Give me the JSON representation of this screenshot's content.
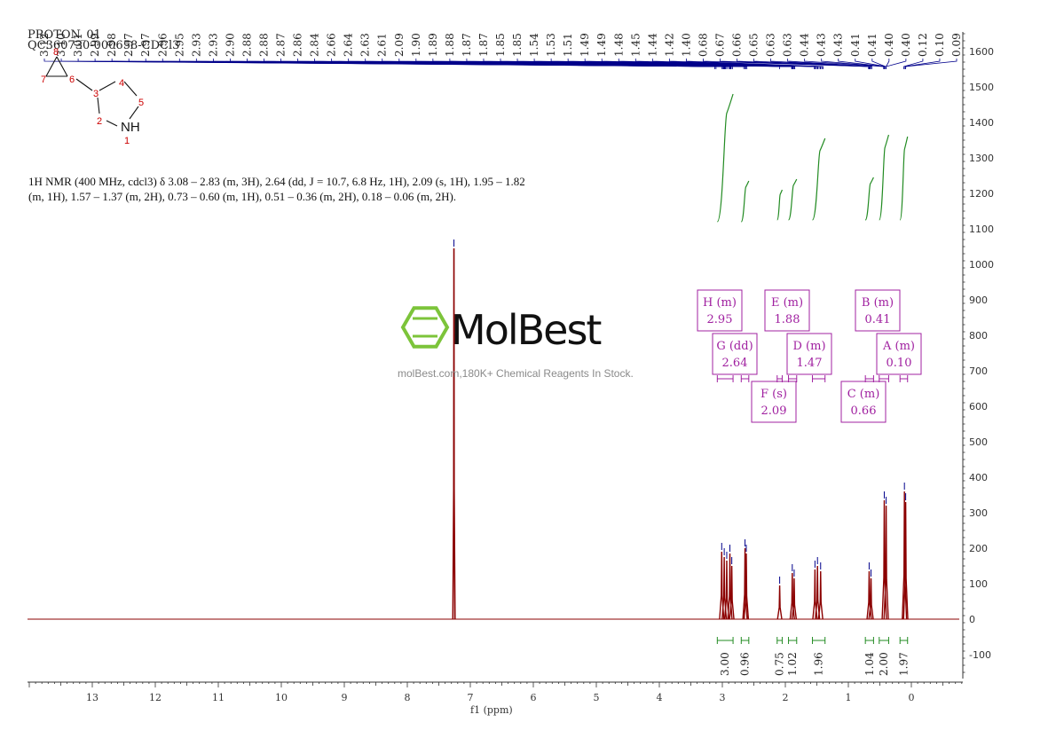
{
  "header": {
    "line1": "PROTON_01",
    "line2": "QC360730-000658-CDCl3"
  },
  "description": "1H NMR (400 MHz, cdcl3) δ 3.08 – 2.83 (m, 3H), 2.64 (dd, J = 10.7, 6.8 Hz, 1H), 2.09 (s, 1H), 1.95 – 1.82 (m, 1H), 1.57 – 1.37 (m, 2H), 0.73 – 0.60 (m, 1H), 0.51 – 0.36 (m, 2H), 0.18 – 0.06 (m, 2H).",
  "watermark": {
    "brand": "MolBest",
    "tagline": "molBest.com,180K+ Chemical Reagents In Stock."
  },
  "molecule": {
    "atom_labels": [
      "1",
      "2",
      "3",
      "4",
      "5",
      "6",
      "7",
      "8"
    ],
    "nh_label": "NH"
  },
  "colors": {
    "spectrum": "#8b0000",
    "peak_labels": "#00008b",
    "integrals": "#228b22",
    "multiplet_boxes": "#a020a0",
    "logo": "#7cc43a"
  },
  "chart_data": {
    "type": "line",
    "title": "",
    "xlabel": "f1 (ppm)",
    "ylabel": "",
    "xlim": [
      14,
      -1
    ],
    "ylim": [
      -150,
      1650
    ],
    "x_ticks": [
      13,
      12,
      11,
      10,
      9,
      8,
      7,
      6,
      5,
      4,
      3,
      2,
      1,
      0
    ],
    "y_ticks": [
      1600,
      1500,
      1400,
      1300,
      1200,
      1100,
      1000,
      900,
      800,
      700,
      600,
      500,
      400,
      300,
      200,
      100,
      0,
      -100
    ],
    "peak_labels": [
      "3.12",
      "3.10",
      "3.01",
      "2.99",
      "2.98",
      "2.97",
      "2.97",
      "2.96",
      "2.95",
      "2.93",
      "2.93",
      "2.90",
      "2.88",
      "2.88",
      "2.87",
      "2.86",
      "2.84",
      "2.66",
      "2.64",
      "2.63",
      "2.61",
      "2.09",
      "1.90",
      "1.89",
      "1.88",
      "1.87",
      "1.87",
      "1.85",
      "1.85",
      "1.54",
      "1.53",
      "1.51",
      "1.49",
      "1.49",
      "1.48",
      "1.45",
      "1.44",
      "1.42",
      "1.40",
      "0.68",
      "0.67",
      "0.66",
      "0.65",
      "0.63",
      "0.63",
      "0.44",
      "0.43",
      "0.43",
      "0.41",
      "0.41",
      "0.40",
      "0.40",
      "0.12",
      "0.10",
      "0.09"
    ],
    "peaks": [
      {
        "x": 7.26,
        "y": 1045
      },
      {
        "x": 3.01,
        "y": 190
      },
      {
        "x": 2.97,
        "y": 175
      },
      {
        "x": 2.93,
        "y": 165
      },
      {
        "x": 2.88,
        "y": 185
      },
      {
        "x": 2.85,
        "y": 150
      },
      {
        "x": 2.64,
        "y": 200
      },
      {
        "x": 2.62,
        "y": 185
      },
      {
        "x": 2.09,
        "y": 95
      },
      {
        "x": 1.89,
        "y": 130
      },
      {
        "x": 1.86,
        "y": 115
      },
      {
        "x": 1.53,
        "y": 140
      },
      {
        "x": 1.49,
        "y": 150
      },
      {
        "x": 1.44,
        "y": 135
      },
      {
        "x": 0.67,
        "y": 135
      },
      {
        "x": 0.64,
        "y": 115
      },
      {
        "x": 0.43,
        "y": 335
      },
      {
        "x": 0.4,
        "y": 320
      },
      {
        "x": 0.11,
        "y": 360
      },
      {
        "x": 0.09,
        "y": 330
      }
    ],
    "integrals": [
      {
        "from": 3.08,
        "to": 2.83,
        "value": "3.00"
      },
      {
        "from": 2.7,
        "to": 2.58,
        "value": "0.96"
      },
      {
        "from": 2.13,
        "to": 2.05,
        "value": "0.75"
      },
      {
        "from": 1.95,
        "to": 1.82,
        "value": "1.02"
      },
      {
        "from": 1.57,
        "to": 1.37,
        "value": "1.96"
      },
      {
        "from": 0.73,
        "to": 0.6,
        "value": "1.04"
      },
      {
        "from": 0.51,
        "to": 0.36,
        "value": "2.00"
      },
      {
        "from": 0.18,
        "to": 0.06,
        "value": "1.97"
      }
    ],
    "multiplets": [
      {
        "label": "H (m)",
        "shift": "2.95",
        "from": 3.08,
        "to": 2.83
      },
      {
        "label": "G (dd)",
        "shift": "2.64",
        "from": 2.7,
        "to": 2.58
      },
      {
        "label": "F (s)",
        "shift": "2.09",
        "from": 2.13,
        "to": 2.05
      },
      {
        "label": "E (m)",
        "shift": "1.88",
        "from": 1.95,
        "to": 1.82
      },
      {
        "label": "D (m)",
        "shift": "1.47",
        "from": 1.57,
        "to": 1.37
      },
      {
        "label": "C (m)",
        "shift": "0.66",
        "from": 0.73,
        "to": 0.6
      },
      {
        "label": "B (m)",
        "shift": "0.41",
        "from": 0.51,
        "to": 0.36
      },
      {
        "label": "A (m)",
        "shift": "0.10",
        "from": 0.18,
        "to": 0.06
      }
    ]
  }
}
